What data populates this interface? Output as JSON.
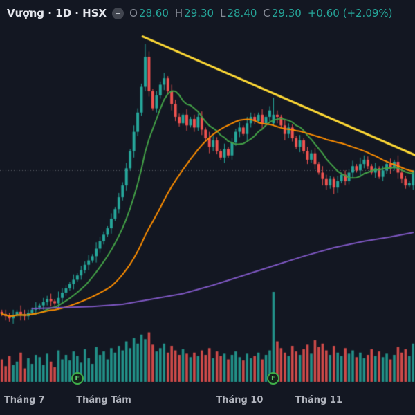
{
  "header": {
    "symbol_title": "Vượng · 1D · HSX",
    "collapse_glyph": "−",
    "ohlc": {
      "o_label": "O",
      "open": "28.60",
      "h_label": "H",
      "high": "29.30",
      "l_label": "L",
      "low": "28.40",
      "c_label": "C",
      "close": "29.30",
      "change": "+0.60 (+2.09%)"
    }
  },
  "colors": {
    "background": "#131722",
    "up": "#26a69a",
    "down": "#ef5350",
    "text_muted": "#868b96",
    "text_light": "#e6e8ee",
    "axis_label": "#b2b5be",
    "ma_fast": "#43a047",
    "ma_mid": "#fb8c00",
    "ma_slow": "#7e57c2",
    "trendline": "#fdd835",
    "price_line": "#9598a1",
    "marker_green": "#3fae49"
  },
  "chart_data": {
    "type": "candlestick",
    "symbol": "Vượng",
    "interval": "1D",
    "exchange": "HSX",
    "price_range": {
      "min": 21.6,
      "max": 35.8
    },
    "candles": [
      [
        22.7,
        22.8,
        22.5,
        22.6
      ],
      [
        22.6,
        22.8,
        22.3,
        22.5
      ],
      [
        22.5,
        22.65,
        22.25,
        22.4
      ],
      [
        22.4,
        22.8,
        22.15,
        22.55
      ],
      [
        22.55,
        22.8,
        22.45,
        22.7
      ],
      [
        22.7,
        23.0,
        22.3,
        22.6
      ],
      [
        22.6,
        22.8,
        22.3,
        22.5
      ],
      [
        22.5,
        22.8,
        22.35,
        22.65
      ],
      [
        22.65,
        22.9,
        22.55,
        22.8
      ],
      [
        22.8,
        23.15,
        22.55,
        22.9
      ],
      [
        22.9,
        23.1,
        22.8,
        23.0
      ],
      [
        23.0,
        23.35,
        22.8,
        23.15
      ],
      [
        23.15,
        23.45,
        23.0,
        23.3
      ],
      [
        23.3,
        23.55,
        22.95,
        23.2
      ],
      [
        23.2,
        23.3,
        23.0,
        23.1
      ],
      [
        23.1,
        23.65,
        22.8,
        23.35
      ],
      [
        23.35,
        23.8,
        23.15,
        23.6
      ],
      [
        23.6,
        23.95,
        23.45,
        23.8
      ],
      [
        23.8,
        24.1,
        23.7,
        24.0
      ],
      [
        24.0,
        24.45,
        23.75,
        24.2
      ],
      [
        24.2,
        24.5,
        24.1,
        24.4
      ],
      [
        24.4,
        24.85,
        24.2,
        24.65
      ],
      [
        24.65,
        25.05,
        24.5,
        24.9
      ],
      [
        24.9,
        25.35,
        24.65,
        25.1
      ],
      [
        25.1,
        25.4,
        25.0,
        25.3
      ],
      [
        25.3,
        25.95,
        25.0,
        25.65
      ],
      [
        25.65,
        26.2,
        25.45,
        26.0
      ],
      [
        26.0,
        26.45,
        25.85,
        26.3
      ],
      [
        26.3,
        26.7,
        26.2,
        26.6
      ],
      [
        26.6,
        27.3,
        26.35,
        27.05
      ],
      [
        27.05,
        27.6,
        26.95,
        27.5
      ],
      [
        27.5,
        28.25,
        27.3,
        28.05
      ],
      [
        28.05,
        28.75,
        27.9,
        28.6
      ],
      [
        28.6,
        29.65,
        28.35,
        29.4
      ],
      [
        29.4,
        30.3,
        29.3,
        30.2
      ],
      [
        30.2,
        31.4,
        29.9,
        31.1
      ],
      [
        31.1,
        32.2,
        30.9,
        32.0
      ],
      [
        32.0,
        33.35,
        31.85,
        33.2
      ],
      [
        33.2,
        35.2,
        33.0,
        34.6
      ],
      [
        34.6,
        34.85,
        32.75,
        33.0
      ],
      [
        33.0,
        33.1,
        32.1,
        32.2
      ],
      [
        32.2,
        33.0,
        32.0,
        32.8
      ],
      [
        32.8,
        33.45,
        32.65,
        33.3
      ],
      [
        33.3,
        33.85,
        33.05,
        33.6
      ],
      [
        33.6,
        33.7,
        32.9,
        33.0
      ],
      [
        33.0,
        33.3,
        32.1,
        32.4
      ],
      [
        32.4,
        32.6,
        31.6,
        31.8
      ],
      [
        31.8,
        31.95,
        31.35,
        31.5
      ],
      [
        31.5,
        32.0,
        31.4,
        31.9
      ],
      [
        31.9,
        32.15,
        31.15,
        31.4
      ],
      [
        31.4,
        31.8,
        31.3,
        31.7
      ],
      [
        31.7,
        31.9,
        31.1,
        31.3
      ],
      [
        31.3,
        31.95,
        31.15,
        31.8
      ],
      [
        31.8,
        32.05,
        30.95,
        31.2
      ],
      [
        31.2,
        31.3,
        30.7,
        30.8
      ],
      [
        30.8,
        31.1,
        30.1,
        30.4
      ],
      [
        30.4,
        30.9,
        30.2,
        30.7
      ],
      [
        30.7,
        30.85,
        30.05,
        30.2
      ],
      [
        30.2,
        30.3,
        29.8,
        29.9
      ],
      [
        29.9,
        30.55,
        29.65,
        30.3
      ],
      [
        30.3,
        30.4,
        29.9,
        30.0
      ],
      [
        30.0,
        30.8,
        29.8,
        30.6
      ],
      [
        30.6,
        31.25,
        30.45,
        31.1
      ],
      [
        31.1,
        31.55,
        30.85,
        31.3
      ],
      [
        31.3,
        31.4,
        30.9,
        31.0
      ],
      [
        31.0,
        31.8,
        30.7,
        31.5
      ],
      [
        31.5,
        32.0,
        31.3,
        31.8
      ],
      [
        31.8,
        31.95,
        31.45,
        31.6
      ],
      [
        31.6,
        32.0,
        31.5,
        31.9
      ],
      [
        31.9,
        32.15,
        31.25,
        31.5
      ],
      [
        31.5,
        31.9,
        31.4,
        31.8
      ],
      [
        31.8,
        32.3,
        31.6,
        32.1
      ],
      [
        31.5,
        32.7,
        31.4,
        31.9
      ],
      [
        31.9,
        32.1,
        31.5,
        31.8
      ],
      [
        31.8,
        31.9,
        31.3,
        31.4
      ],
      [
        31.4,
        31.7,
        30.7,
        31.0
      ],
      [
        31.0,
        31.5,
        30.8,
        31.3
      ],
      [
        31.3,
        31.45,
        30.65,
        30.8
      ],
      [
        30.8,
        30.9,
        30.3,
        30.4
      ],
      [
        30.4,
        30.95,
        30.15,
        30.7
      ],
      [
        30.7,
        30.8,
        30.1,
        30.2
      ],
      [
        30.2,
        30.4,
        29.6,
        29.8
      ],
      [
        29.8,
        30.25,
        29.65,
        30.1
      ],
      [
        30.1,
        30.35,
        29.35,
        29.6
      ],
      [
        29.6,
        29.7,
        29.1,
        29.2
      ],
      [
        29.2,
        29.5,
        28.6,
        28.9
      ],
      [
        28.9,
        29.1,
        28.4,
        28.6
      ],
      [
        28.6,
        29.05,
        28.45,
        28.9
      ],
      [
        28.9,
        29.0,
        28.2,
        28.5
      ],
      [
        28.5,
        29.05,
        28.25,
        28.8
      ],
      [
        28.8,
        29.2,
        28.7,
        29.1
      ],
      [
        29.1,
        29.3,
        28.6,
        28.8
      ],
      [
        28.8,
        29.35,
        28.65,
        29.2
      ],
      [
        29.2,
        29.75,
        28.95,
        29.5
      ],
      [
        29.5,
        29.6,
        29.2,
        29.3
      ],
      [
        29.3,
        29.9,
        29.0,
        29.6
      ],
      [
        29.6,
        30.0,
        29.4,
        29.8
      ],
      [
        29.8,
        29.95,
        29.35,
        29.5
      ],
      [
        29.5,
        29.6,
        29.1,
        29.2
      ],
      [
        29.2,
        29.65,
        28.95,
        29.4
      ],
      [
        29.4,
        29.5,
        28.9,
        29.0
      ],
      [
        29.0,
        29.5,
        28.8,
        29.3
      ],
      [
        29.3,
        29.75,
        29.15,
        29.6
      ],
      [
        29.6,
        29.85,
        29.15,
        29.4
      ],
      [
        29.4,
        29.8,
        29.3,
        29.7
      ],
      [
        29.7,
        30.0,
        28.9,
        29.2
      ],
      [
        29.2,
        29.4,
        28.7,
        28.9
      ],
      [
        28.9,
        29.05,
        28.45,
        28.6
      ],
      [
        28.6,
        28.8,
        28.5,
        28.7
      ],
      [
        28.6,
        29.3,
        28.4,
        29.3
      ]
    ],
    "volumes": [
      2.0,
      1.4,
      2.3,
      1.5,
      1.8,
      2.6,
      1.2,
      2.1,
      1.6,
      2.4,
      2.2,
      1.5,
      2.5,
      1.8,
      1.3,
      2.8,
      2.0,
      2.4,
      1.9,
      2.7,
      2.3,
      1.7,
      2.9,
      2.1,
      1.6,
      3.1,
      2.4,
      2.7,
      2.0,
      3.0,
      2.6,
      3.2,
      2.8,
      3.6,
      3.0,
      3.9,
      3.4,
      4.2,
      3.8,
      4.4,
      3.3,
      2.7,
      3.0,
      3.4,
      2.6,
      3.2,
      2.8,
      2.4,
      2.9,
      2.5,
      2.2,
      2.6,
      2.3,
      2.8,
      2.4,
      3.0,
      2.1,
      2.7,
      2.3,
      2.5,
      2.0,
      2.4,
      2.7,
      2.2,
      1.9,
      2.5,
      2.1,
      2.3,
      2.6,
      2.0,
      2.4,
      2.8,
      8.0,
      3.6,
      3.0,
      2.6,
      2.3,
      3.2,
      2.7,
      2.4,
      2.9,
      3.3,
      2.5,
      3.7,
      3.1,
      3.4,
      2.8,
      2.4,
      3.2,
      2.6,
      2.3,
      3.0,
      2.5,
      2.8,
      2.2,
      2.6,
      2.1,
      2.4,
      2.9,
      2.3,
      2.7,
      2.2,
      2.5,
      2.0,
      2.4,
      3.1,
      2.6,
      2.9,
      2.3,
      3.4
    ],
    "volume_max": 8.0,
    "overlays": [
      {
        "name": "ma-fast",
        "type": "sma",
        "period": 10,
        "color_key": "ma_fast"
      },
      {
        "name": "ma-mid",
        "type": "sma",
        "period": 30,
        "color_key": "ma_mid"
      },
      {
        "name": "ma-slow",
        "type": "points",
        "color_key": "ma_slow",
        "points": [
          [
            8,
            22.85
          ],
          [
            16,
            22.9
          ],
          [
            24,
            22.95
          ],
          [
            32,
            23.05
          ],
          [
            40,
            23.3
          ],
          [
            48,
            23.55
          ],
          [
            56,
            23.95
          ],
          [
            64,
            24.4
          ],
          [
            72,
            24.85
          ],
          [
            80,
            25.3
          ],
          [
            88,
            25.7
          ],
          [
            96,
            26.0
          ],
          [
            103,
            26.2
          ],
          [
            109,
            26.4
          ]
        ]
      }
    ],
    "trendline": {
      "from": [
        37.3,
        35.55
      ],
      "to": [
        111,
        29.9
      ]
    },
    "price_line": {
      "price": 29.3
    },
    "time_axis": {
      "labels": [
        {
          "index": 6,
          "text": "Tháng 7"
        },
        {
          "index": 27,
          "text": "Tháng Tám"
        },
        {
          "index": 63,
          "text": "Tháng 10"
        },
        {
          "index": 84,
          "text": "Tháng 11"
        }
      ],
      "markers": [
        {
          "index": 20,
          "label": "F"
        },
        {
          "index": 72,
          "label": "F"
        }
      ]
    }
  }
}
